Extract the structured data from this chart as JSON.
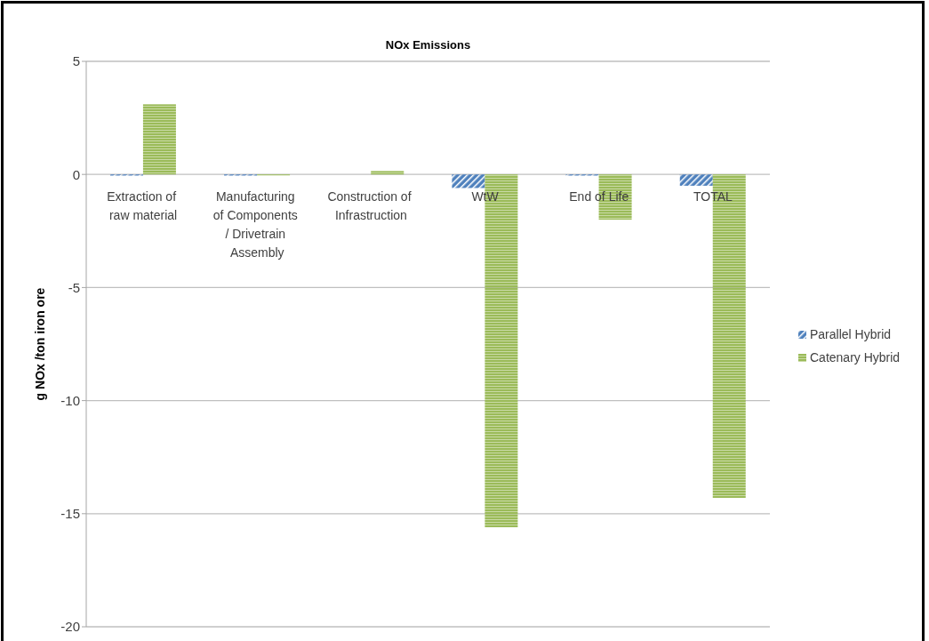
{
  "chart_data": {
    "type": "bar",
    "title": "NOx Emissions",
    "ylabel": "g NOx /ton iron ore",
    "categories": [
      "Extraction of raw material",
      "Manufacturing of Components / Drivetrain Assembly",
      "Construction of Infrastruction",
      "WtW",
      "End of Life",
      "TOTAL"
    ],
    "series": [
      {
        "name": "Parallel Hybrid",
        "color": "#4f81bd",
        "values": [
          -0.05,
          -0.05,
          0,
          -0.6,
          -0.05,
          -0.5
        ]
      },
      {
        "name": "Catenary Hybrid",
        "color": "#9bbb59",
        "values": [
          3.1,
          -0.05,
          0.15,
          -15.6,
          -2.0,
          -14.3
        ]
      }
    ],
    "ylim": [
      -20,
      5
    ],
    "yticks": [
      -20,
      -15,
      -10,
      -5,
      0,
      5
    ],
    "grid": "y",
    "legend": "right"
  }
}
